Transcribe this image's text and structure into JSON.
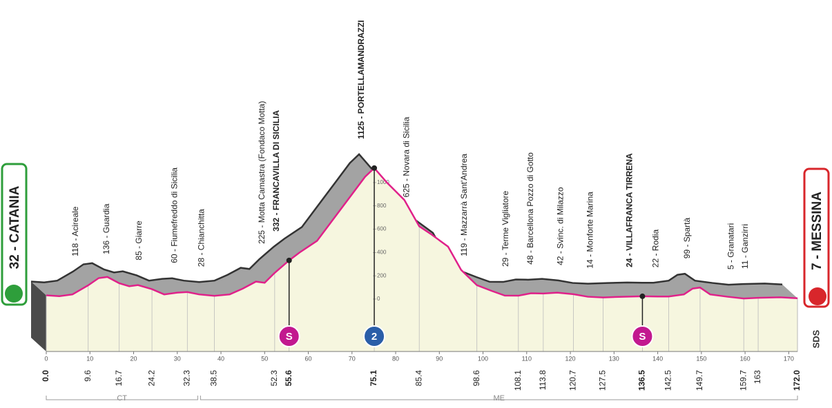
{
  "chart_data": {
    "type": "area",
    "start": "32 - CATANIA",
    "finish": "7 - MESSINA",
    "x": [
      0,
      3,
      6,
      9.6,
      12,
      14,
      16.7,
      19,
      21,
      24.2,
      27,
      30,
      32.3,
      35,
      38.5,
      42,
      45,
      48,
      50,
      52.3,
      55.6,
      58,
      62,
      66,
      70,
      73,
      75.1,
      78,
      82,
      85.4,
      88,
      92,
      95,
      98.6,
      102,
      105,
      108.1,
      111,
      113.8,
      117,
      120.7,
      124,
      127.5,
      132,
      136.5,
      140,
      142.5,
      146,
      148,
      149.7,
      152,
      156,
      159.7,
      163,
      168,
      172
    ],
    "values": [
      32,
      25,
      40,
      118,
      180,
      190,
      136,
      110,
      120,
      85,
      40,
      55,
      60,
      40,
      28,
      40,
      90,
      150,
      140,
      225,
      332,
      400,
      500,
      700,
      900,
      1050,
      1125,
      1000,
      850,
      625,
      560,
      450,
      250,
      119,
      70,
      30,
      29,
      50,
      48,
      55,
      42,
      20,
      14,
      20,
      24,
      22,
      22,
      40,
      90,
      99,
      40,
      20,
      5,
      11,
      15,
      7
    ],
    "color": "#e0218a",
    "xlim": [
      0,
      172
    ],
    "xticks": [
      0,
      10,
      20,
      30,
      40,
      50,
      60,
      70,
      80,
      90,
      100,
      110,
      120,
      130,
      140,
      150,
      160,
      170
    ],
    "ylim": [
      -450,
      1260
    ],
    "yticks": [
      0,
      200,
      400,
      600,
      800,
      1000
    ],
    "waypoints": [
      {
        "km": {
          "value": 0,
          "label": "0.0"
        },
        "bold": true
      },
      {
        "km": 9.6,
        "label": "118 - Acireale"
      },
      {
        "km": 16.7,
        "label": "136 - Guardia"
      },
      {
        "km": 24.2,
        "label": "85 - Giarre"
      },
      {
        "km": 32.3,
        "label": "60 - Fiumefreddo di Sicilia"
      },
      {
        "km": 38.5,
        "label": "28 - Chianchitta"
      },
      {
        "km": 52.3,
        "label": "225 - Motta Camastra (Fondaco Motta)"
      },
      {
        "km": 55.6,
        "label": "332 - FRANCAVILLA DI SICILIA",
        "bold": true
      },
      {
        "km": 75.1,
        "label": "1125 - PORTELLAMANDRAZZI",
        "bold": true
      },
      {
        "km": 85.4,
        "label": "625 - Novara di Sicilia"
      },
      {
        "km": 98.6,
        "label": "119 - Mazzarrà Sant'Andrea"
      },
      {
        "km": 108.1,
        "label": "29 - Terme Vigliatore"
      },
      {
        "km": 113.8,
        "label": "48 - Barcellona Pozzo di Gotto"
      },
      {
        "km": 120.7,
        "label": "42 - Svinc. di Milazzo"
      },
      {
        "km": 127.5,
        "label": "14 - Monforte Marina"
      },
      {
        "km": 136.5,
        "label": "24 - VILLAFRANCA TIRRENA",
        "bold": true
      },
      {
        "km": 142.5,
        "label": "22 - Rodia"
      },
      {
        "km": 149.7,
        "label": "99 - Spartà"
      },
      {
        "km": 159.7,
        "label": "5 - Granatari"
      },
      {
        "km": 163.0,
        "label": "11 - Ganzirri"
      },
      {
        "km": {
          "value": 172,
          "label": "172.0"
        },
        "bold": true
      }
    ],
    "markers": [
      {
        "km": 55.6,
        "label": "S",
        "color": "#c2188f"
      },
      {
        "km": 75.1,
        "label": "2",
        "color": "#2a5ea8"
      },
      {
        "km": 136.5,
        "label": "S",
        "color": "#c2188f"
      }
    ],
    "provinces": [
      "CT",
      "ME"
    ],
    "logo": "SDS"
  }
}
